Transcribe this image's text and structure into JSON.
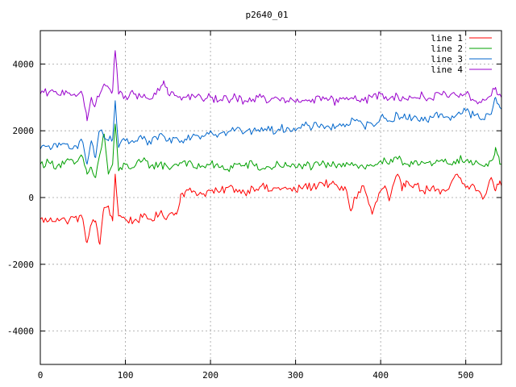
{
  "chart_data": {
    "type": "line",
    "title": "p2640_01",
    "xlabel": "",
    "ylabel": "",
    "xlim": [
      0,
      542
    ],
    "ylim": [
      -5000,
      5000
    ],
    "xticks": [
      0,
      100,
      200,
      300,
      400,
      500
    ],
    "yticks": [
      -4000,
      -2000,
      0,
      2000,
      4000
    ],
    "grid": true,
    "legend_position": "top-right",
    "series": [
      {
        "name": "line 1",
        "color": "#ff0000",
        "x": [
          0,
          10,
          20,
          30,
          40,
          50,
          55,
          60,
          65,
          70,
          75,
          80,
          85,
          88,
          92,
          100,
          110,
          120,
          130,
          140,
          150,
          155,
          160,
          165,
          170,
          180,
          190,
          200,
          210,
          220,
          230,
          240,
          250,
          260,
          270,
          280,
          290,
          300,
          310,
          320,
          330,
          340,
          350,
          360,
          365,
          370,
          380,
          390,
          400,
          405,
          410,
          420,
          425,
          430,
          440,
          450,
          460,
          470,
          480,
          490,
          500,
          510,
          520,
          530,
          535,
          540,
          542
        ],
        "y": [
          -650,
          -700,
          -620,
          -700,
          -600,
          -650,
          -1350,
          -800,
          -700,
          -1400,
          -300,
          -250,
          -700,
          700,
          -550,
          -650,
          -700,
          -600,
          -650,
          -500,
          -550,
          -450,
          -500,
          100,
          150,
          200,
          100,
          200,
          150,
          300,
          250,
          150,
          300,
          350,
          200,
          300,
          250,
          200,
          350,
          300,
          450,
          400,
          300,
          200,
          -400,
          0,
          350,
          -500,
          200,
          350,
          -100,
          700,
          200,
          500,
          400,
          200,
          300,
          100,
          250,
          700,
          300,
          350,
          -50,
          600,
          200,
          500,
          350
        ]
      },
      {
        "name": "line 2",
        "color": "#00a000",
        "x": [
          0,
          10,
          20,
          30,
          40,
          50,
          55,
          60,
          65,
          70,
          75,
          80,
          85,
          88,
          92,
          100,
          110,
          120,
          130,
          140,
          150,
          160,
          170,
          180,
          190,
          200,
          210,
          220,
          230,
          240,
          250,
          260,
          270,
          280,
          290,
          300,
          310,
          320,
          330,
          340,
          350,
          360,
          370,
          380,
          390,
          400,
          410,
          420,
          430,
          440,
          450,
          460,
          470,
          480,
          490,
          500,
          510,
          520,
          530,
          535,
          540,
          542
        ],
        "y": [
          1000,
          1050,
          950,
          1100,
          1000,
          1200,
          700,
          900,
          600,
          1300,
          1900,
          700,
          1000,
          2200,
          800,
          1000,
          900,
          1100,
          950,
          1000,
          900,
          1000,
          1100,
          900,
          950,
          1000,
          900,
          850,
          1000,
          950,
          1000,
          850,
          900,
          1000,
          950,
          900,
          1000,
          900,
          1000,
          950,
          1000,
          1050,
          1000,
          900,
          950,
          1100,
          1000,
          1150,
          1000,
          1100,
          1050,
          950,
          1100,
          1000,
          1150,
          1100,
          1000,
          950,
          1100,
          1500,
          1000,
          1000
        ]
      },
      {
        "name": "line 3",
        "color": "#0066cc",
        "x": [
          0,
          10,
          20,
          30,
          40,
          50,
          55,
          60,
          65,
          70,
          75,
          80,
          85,
          88,
          92,
          100,
          110,
          120,
          130,
          140,
          150,
          160,
          170,
          180,
          190,
          200,
          210,
          220,
          230,
          240,
          250,
          260,
          270,
          280,
          290,
          300,
          310,
          320,
          330,
          340,
          350,
          360,
          370,
          380,
          390,
          400,
          410,
          420,
          430,
          440,
          450,
          460,
          470,
          480,
          490,
          500,
          510,
          520,
          530,
          535,
          540,
          542
        ],
        "y": [
          1450,
          1550,
          1500,
          1600,
          1550,
          1650,
          1000,
          1700,
          1200,
          2000,
          1800,
          1700,
          1750,
          2900,
          1500,
          1700,
          1650,
          1750,
          1600,
          1900,
          1700,
          1800,
          1750,
          1900,
          1850,
          2000,
          1900,
          1950,
          2050,
          1950,
          2000,
          2100,
          2000,
          2050,
          2100,
          2000,
          2150,
          2100,
          2200,
          2100,
          2150,
          2200,
          2300,
          2150,
          2200,
          2400,
          2300,
          2500,
          2350,
          2450,
          2300,
          2400,
          2500,
          2400,
          2500,
          2600,
          2450,
          2350,
          2500,
          3000,
          2700,
          2650
        ]
      },
      {
        "name": "line 4",
        "color": "#9900cc",
        "x": [
          0,
          10,
          20,
          30,
          40,
          50,
          55,
          60,
          65,
          70,
          75,
          80,
          85,
          88,
          92,
          100,
          110,
          120,
          130,
          140,
          145,
          150,
          160,
          170,
          180,
          190,
          200,
          210,
          220,
          230,
          240,
          250,
          260,
          270,
          280,
          290,
          300,
          310,
          320,
          330,
          340,
          350,
          360,
          370,
          380,
          390,
          400,
          410,
          420,
          430,
          440,
          450,
          460,
          470,
          480,
          490,
          500,
          510,
          520,
          530,
          535,
          540,
          542
        ],
        "y": [
          3100,
          3150,
          3100,
          3200,
          3100,
          3050,
          2300,
          3000,
          2800,
          3100,
          3400,
          3300,
          3200,
          4400,
          3100,
          3050,
          3100,
          3000,
          2950,
          3200,
          3500,
          3100,
          3050,
          3000,
          3050,
          2950,
          3000,
          2900,
          2950,
          3000,
          2900,
          2950,
          3000,
          2900,
          2950,
          2900,
          2850,
          2900,
          2950,
          2900,
          2950,
          2850,
          3000,
          3050,
          2900,
          3000,
          3100,
          2950,
          3050,
          2950,
          3000,
          3050,
          2950,
          3100,
          3000,
          3050,
          3100,
          2900,
          2950,
          3050,
          3300,
          3100,
          3000
        ]
      }
    ]
  }
}
